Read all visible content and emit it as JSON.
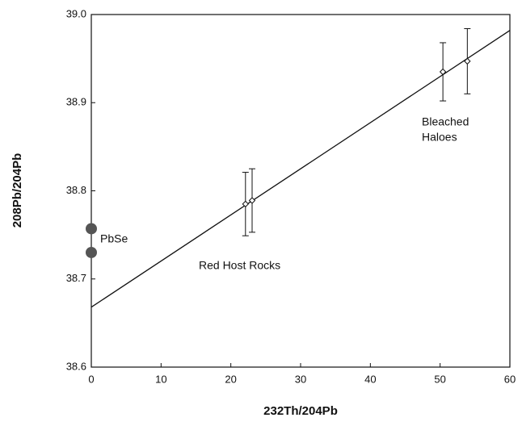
{
  "chart_data": {
    "type": "scatter",
    "xlabel": "232Th/204Pb",
    "ylabel": "208Pb/204Pb",
    "annotations": [
      "PbSe",
      "Red Host Rocks",
      "Bleached",
      "Haloes"
    ],
    "xlim": [
      0,
      60
    ],
    "xticks": [
      0,
      10,
      20,
      30,
      40,
      50,
      60
    ],
    "ylim": [
      38.6,
      39.0
    ],
    "yticks": [
      38.6,
      38.7,
      38.8,
      38.9,
      {
        "value": 39.0,
        "label": "39.0"
      }
    ],
    "series": [
      {
        "marker": "diamond",
        "color": "#111111",
        "x": [
          22.1,
          23.05,
          50.4,
          53.9
        ],
        "values": [
          38.785,
          38.789,
          38.935,
          38.947
        ],
        "errors": [
          0.036,
          0.036,
          0.033,
          0.037
        ]
      },
      {
        "marker": "circle",
        "color": "#555555",
        "x": [
          0,
          0
        ],
        "values": [
          38.757,
          38.73
        ]
      }
    ],
    "fit_line": {
      "x": [
        0,
        60
      ],
      "values": [
        38.668,
        38.982
      ],
      "color": "#111111"
    }
  }
}
